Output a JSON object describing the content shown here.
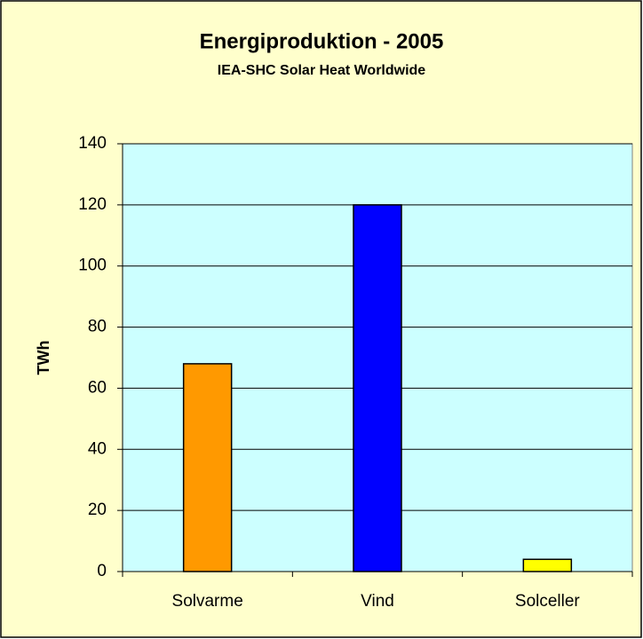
{
  "chart_data": {
    "type": "bar",
    "title": "Energiproduktion - 2005",
    "subtitle": "IEA-SHC Solar Heat Worldwide",
    "y_label": "TWh",
    "categories": [
      "Solvarme",
      "Vind",
      "Solceller"
    ],
    "values": [
      68,
      120,
      4
    ],
    "colors": [
      "#ff9900",
      "#0000ff",
      "#ffff00"
    ],
    "ylim": [
      0,
      140
    ],
    "yticks": [
      0,
      20,
      40,
      60,
      80,
      100,
      120,
      140
    ],
    "grid": true
  }
}
